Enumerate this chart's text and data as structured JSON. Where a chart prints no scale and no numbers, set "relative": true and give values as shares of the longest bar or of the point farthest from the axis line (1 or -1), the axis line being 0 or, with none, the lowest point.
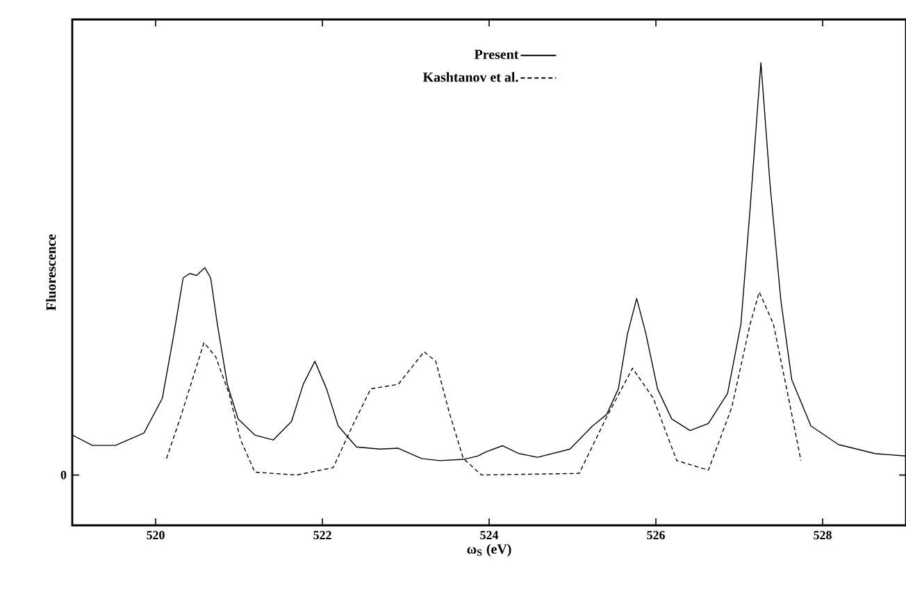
{
  "chart_data": {
    "type": "line",
    "xlabel": "ω$_{S}$ (eV)",
    "ylabel": "Fluorescence",
    "relative": true,
    "xlim": [
      519,
      529
    ],
    "xticks": [
      520,
      522,
      524,
      526,
      528
    ],
    "legend": "top",
    "annotations": [
      "0"
    ],
    "series": [
      {
        "name": "Present",
        "color": "#000000",
        "line_style": "solid",
        "x": [
          519.0,
          519.24,
          519.52,
          519.86,
          520.08,
          520.22,
          520.33,
          520.41,
          520.49,
          520.59,
          520.66,
          520.74,
          520.86,
          520.99,
          521.19,
          521.41,
          521.63,
          521.77,
          521.91,
          522.05,
          522.19,
          522.41,
          522.69,
          522.91,
          523.19,
          523.41,
          523.69,
          523.86,
          523.97,
          524.16,
          524.36,
          524.58,
          524.97,
          525.24,
          525.41,
          525.55,
          525.66,
          525.77,
          525.88,
          526.02,
          526.19,
          526.41,
          526.63,
          526.86,
          527.02,
          527.13,
          527.26,
          527.37,
          527.5,
          527.63,
          527.86,
          528.19,
          528.63,
          529.0
        ],
        "values": [
          0.097,
          0.072,
          0.072,
          0.102,
          0.186,
          0.343,
          0.478,
          0.489,
          0.484,
          0.503,
          0.478,
          0.366,
          0.22,
          0.136,
          0.097,
          0.085,
          0.13,
          0.22,
          0.276,
          0.209,
          0.119,
          0.068,
          0.063,
          0.065,
          0.04,
          0.035,
          0.038,
          0.046,
          0.057,
          0.071,
          0.052,
          0.043,
          0.063,
          0.119,
          0.147,
          0.209,
          0.343,
          0.428,
          0.343,
          0.209,
          0.136,
          0.108,
          0.125,
          0.198,
          0.366,
          0.646,
          1.0,
          0.703,
          0.422,
          0.231,
          0.119,
          0.074,
          0.052,
          0.046
        ]
      },
      {
        "name": "Kashtanov et al.",
        "color": "#000000",
        "line_style": "dashed",
        "x": [
          520.13,
          520.3,
          520.44,
          520.58,
          520.72,
          520.88,
          521.02,
          521.19,
          521.69,
          522.13,
          522.36,
          522.58,
          522.91,
          523.22,
          523.36,
          523.52,
          523.69,
          523.91,
          525.08,
          525.41,
          525.72,
          525.97,
          526.25,
          526.63,
          526.91,
          527.13,
          527.24,
          527.41,
          527.58,
          527.74
        ],
        "values": [
          0.04,
          0.141,
          0.231,
          0.321,
          0.287,
          0.198,
          0.085,
          0.007,
          0.0,
          0.018,
          0.119,
          0.209,
          0.22,
          0.299,
          0.276,
          0.153,
          0.04,
          0.0,
          0.004,
          0.141,
          0.259,
          0.186,
          0.035,
          0.012,
          0.164,
          0.366,
          0.444,
          0.366,
          0.198,
          0.035
        ]
      }
    ]
  }
}
